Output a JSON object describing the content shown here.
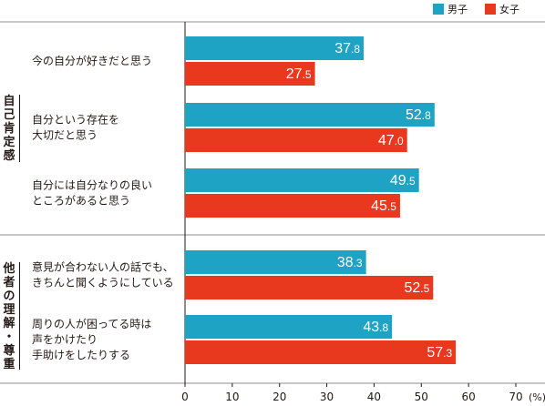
{
  "legend": {
    "male": {
      "label": "男子",
      "color": "#1fa3c4"
    },
    "female": {
      "label": "女子",
      "color": "#e8391f"
    }
  },
  "groups": [
    {
      "label": "自己肯定感",
      "chars": [
        "自",
        "己",
        "肯",
        "定",
        "感"
      ]
    },
    {
      "label": "他者の理解・尊重",
      "chars": [
        "他",
        "者",
        "の",
        "理",
        "解",
        "・",
        "尊",
        "重"
      ]
    }
  ],
  "chart_data": {
    "type": "bar",
    "orientation": "horizontal",
    "xlim": [
      0,
      70
    ],
    "xticks": [
      "0",
      "10",
      "20",
      "30",
      "40",
      "50",
      "60",
      "70"
    ],
    "xunit": "(%)",
    "categories": [
      {
        "lines": [
          "今の自分が好きだと思う"
        ],
        "group": 0
      },
      {
        "lines": [
          "自分という存在を",
          "大切だと思う"
        ],
        "group": 0
      },
      {
        "lines": [
          "自分には自分なりの良い",
          "ところがあると思う"
        ],
        "group": 0
      },
      {
        "lines": [
          "意見が合わない人の話でも、",
          "きちんと聞くようにしている"
        ],
        "group": 1
      },
      {
        "lines": [
          "周りの人が困ってる時は",
          "声をかけたり",
          "手助けをしたりする"
        ],
        "group": 1
      }
    ],
    "series": [
      {
        "name": "男子",
        "color": "#1fa3c4",
        "values": [
          37.8,
          52.8,
          49.5,
          38.3,
          43.8
        ],
        "labels": [
          "37.8",
          "52.8",
          "49.5",
          "38.3",
          "43.8"
        ]
      },
      {
        "name": "女子",
        "color": "#e8391f",
        "values": [
          27.5,
          47.0,
          45.5,
          52.5,
          57.3
        ],
        "labels": [
          "27.5",
          "47.0",
          "45.5",
          "52.5",
          "57.3"
        ]
      }
    ]
  }
}
